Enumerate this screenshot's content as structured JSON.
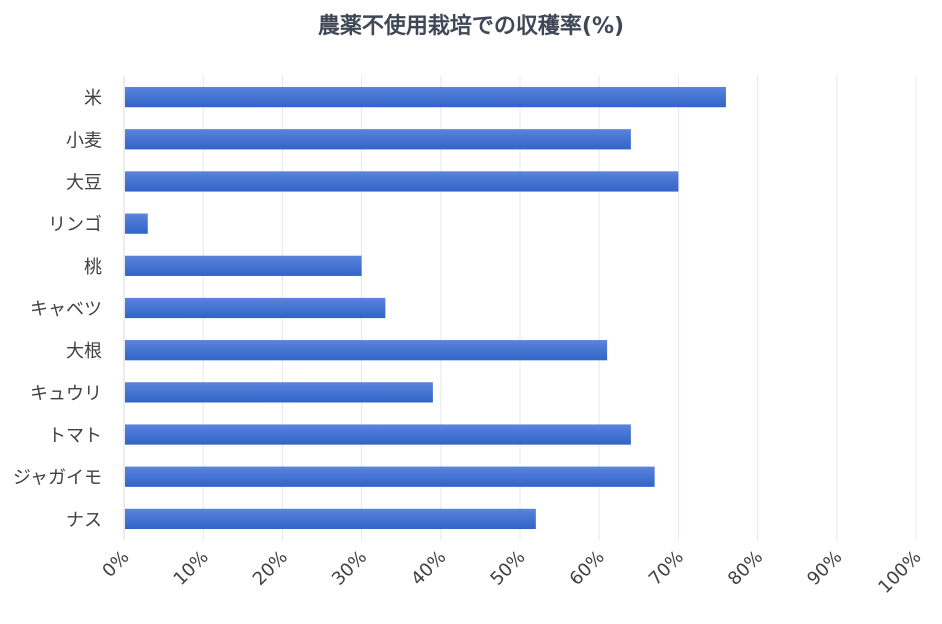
{
  "chart_data": {
    "type": "bar",
    "orientation": "horizontal",
    "title": "農薬不使用栽培での収穫率(%)",
    "xlabel": "",
    "ylabel": "",
    "categories": [
      "米",
      "小麦",
      "大豆",
      "リンゴ",
      "桃",
      "キャベツ",
      "大根",
      "キュウリ",
      "トマト",
      "ジャガイモ",
      "ナス"
    ],
    "values": [
      76,
      64,
      70,
      3,
      30,
      33,
      61,
      39,
      64,
      67,
      52
    ],
    "xlim": [
      0,
      100
    ],
    "ticks": [
      "0%",
      "10%",
      "20%",
      "30%",
      "40%",
      "50%",
      "60%",
      "70%",
      "80%",
      "90%",
      "100%"
    ],
    "grid": true,
    "legend": "none",
    "colors": {
      "bar_light": "#5b84db",
      "bar_dark": "#3163c8",
      "grid": "#e4e8ef",
      "axis": "#d9d9d9",
      "tick_text": "#404040",
      "title": "#404857"
    }
  }
}
